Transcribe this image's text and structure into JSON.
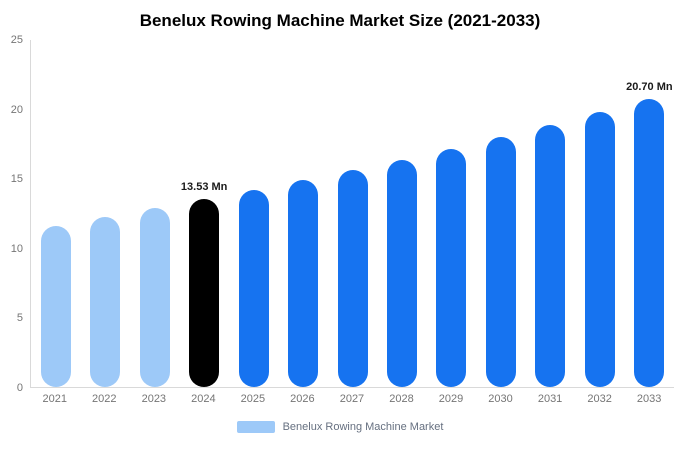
{
  "chart_data": {
    "type": "bar",
    "title": "Benelux Rowing Machine Market Size (2021-2033)",
    "categories": [
      "2021",
      "2022",
      "2023",
      "2024",
      "2025",
      "2026",
      "2027",
      "2028",
      "2029",
      "2030",
      "2031",
      "2032",
      "2033"
    ],
    "values": [
      11.6,
      12.2,
      12.85,
      13.53,
      14.18,
      14.87,
      15.59,
      16.34,
      17.13,
      17.96,
      18.83,
      19.74,
      20.7
    ],
    "unit": "Mn",
    "xlabel": "",
    "ylabel": "",
    "ylim": [
      0,
      25
    ],
    "yticks": [
      0,
      5,
      10,
      15,
      20,
      25
    ],
    "grid": false,
    "legend": {
      "position": "bottom",
      "label": "Benelux Rowing Machine Market",
      "swatch_color": "#9dc9f8"
    },
    "bar_colors": [
      "#9dc9f8",
      "#9dc9f8",
      "#9dc9f8",
      "#000000",
      "#1673f0",
      "#1673f0",
      "#1673f0",
      "#1673f0",
      "#1673f0",
      "#1673f0",
      "#1673f0",
      "#1673f0",
      "#1673f0"
    ],
    "palette": {
      "historical": "#9dc9f8",
      "base_year": "#000000",
      "forecast": "#1673f0"
    },
    "annotations": [
      {
        "index": 3,
        "text": "13.53 Mn"
      },
      {
        "index": 12,
        "text": "20.70 Mn"
      }
    ],
    "axis_color": "#d9d9d9",
    "tick_label_color": "#757575",
    "annotation_color": "#1a1a1a"
  }
}
